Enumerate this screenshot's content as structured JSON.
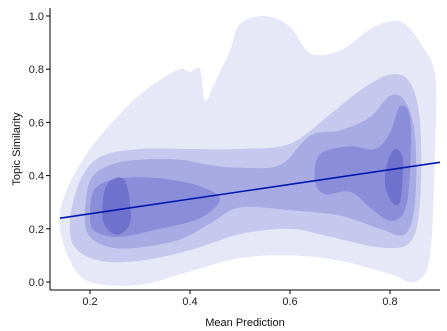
{
  "chart_data": {
    "type": "density_contour_with_regression",
    "xlabel": "Mean Prediction",
    "ylabel": "Topic Similarity",
    "xlim": [
      0.12,
      0.9
    ],
    "ylim": [
      -0.03,
      1.03
    ],
    "x_ticks": [
      0.2,
      0.4,
      0.6,
      0.8
    ],
    "x_tick_labels": [
      "0.2",
      "0.4",
      "0.6",
      "0.8"
    ],
    "y_ticks": [
      0.0,
      0.2,
      0.4,
      0.6,
      0.8,
      1.0
    ],
    "y_tick_labels": [
      "0.0",
      "0.2",
      "0.4",
      "0.6",
      "0.8",
      "1.0"
    ],
    "grid": false,
    "density_colors": [
      "#e6e7f7",
      "#c6c8ee",
      "#a8abe3",
      "#8a8ed8",
      "#6e72cc"
    ],
    "density_levels": [
      {
        "level": 1,
        "points": [
          [
            0.14,
            0.21
          ],
          [
            0.15,
            0.33
          ],
          [
            0.2,
            0.5
          ],
          [
            0.28,
            0.67
          ],
          [
            0.34,
            0.76
          ],
          [
            0.38,
            0.8
          ],
          [
            0.4,
            0.79
          ],
          [
            0.42,
            0.8
          ],
          [
            0.43,
            0.68
          ],
          [
            0.45,
            0.75
          ],
          [
            0.48,
            0.87
          ],
          [
            0.5,
            0.97
          ],
          [
            0.55,
            1.0
          ],
          [
            0.6,
            0.96
          ],
          [
            0.64,
            0.86
          ],
          [
            0.7,
            0.87
          ],
          [
            0.76,
            0.95
          ],
          [
            0.8,
            0.98
          ],
          [
            0.83,
            0.97
          ],
          [
            0.86,
            0.9
          ],
          [
            0.89,
            0.78
          ],
          [
            0.89,
            0.5
          ],
          [
            0.88,
            0.1
          ],
          [
            0.85,
            0.0
          ],
          [
            0.8,
            0.03
          ],
          [
            0.7,
            0.08
          ],
          [
            0.6,
            0.1
          ],
          [
            0.5,
            0.09
          ],
          [
            0.4,
            0.04
          ],
          [
            0.3,
            -0.01
          ],
          [
            0.2,
            0.0
          ],
          [
            0.16,
            0.08
          ]
        ]
      },
      {
        "level": 2,
        "points": [
          [
            0.16,
            0.23
          ],
          [
            0.18,
            0.38
          ],
          [
            0.22,
            0.47
          ],
          [
            0.3,
            0.5
          ],
          [
            0.4,
            0.5
          ],
          [
            0.5,
            0.5
          ],
          [
            0.6,
            0.52
          ],
          [
            0.68,
            0.63
          ],
          [
            0.74,
            0.72
          ],
          [
            0.8,
            0.78
          ],
          [
            0.84,
            0.75
          ],
          [
            0.86,
            0.6
          ],
          [
            0.86,
            0.3
          ],
          [
            0.84,
            0.15
          ],
          [
            0.78,
            0.13
          ],
          [
            0.68,
            0.17
          ],
          [
            0.6,
            0.2
          ],
          [
            0.5,
            0.18
          ],
          [
            0.4,
            0.12
          ],
          [
            0.3,
            0.08
          ],
          [
            0.22,
            0.08
          ],
          [
            0.17,
            0.13
          ]
        ]
      },
      {
        "level": 3,
        "points": [
          [
            0.19,
            0.24
          ],
          [
            0.2,
            0.38
          ],
          [
            0.24,
            0.44
          ],
          [
            0.3,
            0.46
          ],
          [
            0.38,
            0.46
          ],
          [
            0.44,
            0.44
          ],
          [
            0.5,
            0.43
          ],
          [
            0.58,
            0.44
          ],
          [
            0.64,
            0.55
          ],
          [
            0.7,
            0.57
          ],
          [
            0.76,
            0.62
          ],
          [
            0.8,
            0.7
          ],
          [
            0.83,
            0.68
          ],
          [
            0.85,
            0.55
          ],
          [
            0.85,
            0.3
          ],
          [
            0.83,
            0.18
          ],
          [
            0.78,
            0.2
          ],
          [
            0.7,
            0.25
          ],
          [
            0.6,
            0.27
          ],
          [
            0.5,
            0.28
          ],
          [
            0.44,
            0.22
          ],
          [
            0.38,
            0.16
          ],
          [
            0.3,
            0.13
          ],
          [
            0.24,
            0.13
          ],
          [
            0.2,
            0.17
          ]
        ]
      },
      {
        "level": 4,
        "points": [
          [
            0.2,
            0.25
          ],
          [
            0.21,
            0.35
          ],
          [
            0.26,
            0.39
          ],
          [
            0.34,
            0.39
          ],
          [
            0.42,
            0.36
          ],
          [
            0.46,
            0.31
          ],
          [
            0.42,
            0.24
          ],
          [
            0.34,
            0.2
          ],
          [
            0.26,
            0.17
          ],
          [
            0.21,
            0.19
          ]
        ]
      },
      {
        "level": 4,
        "points": [
          [
            0.65,
            0.38
          ],
          [
            0.66,
            0.48
          ],
          [
            0.72,
            0.51
          ],
          [
            0.77,
            0.5
          ],
          [
            0.8,
            0.56
          ],
          [
            0.82,
            0.66
          ],
          [
            0.84,
            0.62
          ],
          [
            0.84,
            0.42
          ],
          [
            0.83,
            0.27
          ],
          [
            0.8,
            0.23
          ],
          [
            0.76,
            0.28
          ],
          [
            0.72,
            0.34
          ],
          [
            0.67,
            0.33
          ]
        ]
      },
      {
        "level": 5,
        "points": [
          [
            0.225,
            0.24
          ],
          [
            0.23,
            0.35
          ],
          [
            0.25,
            0.39
          ],
          [
            0.27,
            0.38
          ],
          [
            0.28,
            0.3
          ],
          [
            0.28,
            0.22
          ],
          [
            0.26,
            0.18
          ],
          [
            0.24,
            0.19
          ]
        ]
      },
      {
        "level": 5,
        "points": [
          [
            0.79,
            0.37
          ],
          [
            0.795,
            0.45
          ],
          [
            0.81,
            0.5
          ],
          [
            0.825,
            0.47
          ],
          [
            0.825,
            0.38
          ],
          [
            0.82,
            0.3
          ],
          [
            0.81,
            0.29
          ],
          [
            0.8,
            0.31
          ]
        ]
      }
    ],
    "series": [
      {
        "type": "line",
        "color": "#0018b0",
        "x": [
          0.14,
          0.9
        ],
        "y": [
          0.24,
          0.45
        ]
      }
    ]
  }
}
